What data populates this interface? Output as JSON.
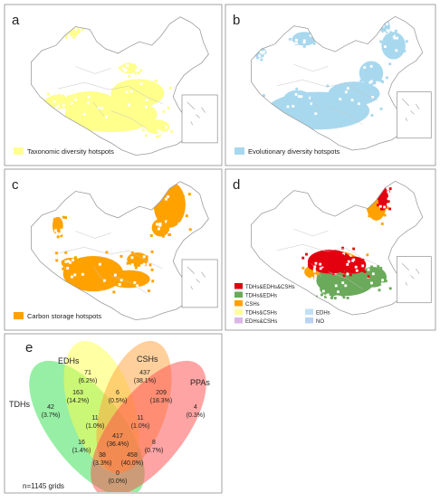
{
  "panels": [
    {
      "letter": "a",
      "legend": "Taxonomic diversity hotspots",
      "color": "#ffff8c"
    },
    {
      "letter": "b",
      "legend": "Evolutionary diversity hotspots",
      "color": "#a8d8ee"
    },
    {
      "letter": "c",
      "legend": "Carbon storage hotspots",
      "color": "#ffa200"
    },
    {
      "letter": "d",
      "legend": "",
      "color": "#e0120f"
    }
  ],
  "panel_d_legend": [
    {
      "label": "TDHs&EDHs&CSHs",
      "color": "#e3000f"
    },
    {
      "label": "TDHs&EDHs",
      "color": "#6aaa5a"
    },
    {
      "label": "CSHs",
      "color": "#ffa200"
    },
    {
      "label": "TDHs&CSHs",
      "color": "#ffff9a"
    },
    {
      "label": "EDHs",
      "color": "#bfe1f5"
    },
    {
      "label": "EDHs&CSHs",
      "color": "#dcb6e6"
    },
    {
      "label": "NO",
      "color": "#bcd3f3"
    }
  ],
  "venn": {
    "letter": "e",
    "set_labels": {
      "tdhs": "TDHs",
      "edhs": "EDHs",
      "cshs": "CSHs",
      "ppas": "PPAs"
    },
    "colors": {
      "tdhs": "#2ee04a",
      "edhs": "#ffff4a",
      "cshs": "#ffa23a",
      "ppas": "#ff4a4a"
    },
    "regions": [
      {
        "count": "42",
        "pct": "(3.7%)"
      },
      {
        "count": "71",
        "pct": "(6.2%)"
      },
      {
        "count": "437",
        "pct": "(38.1%)"
      },
      {
        "count": "4",
        "pct": "(0.3%)"
      },
      {
        "count": "163",
        "pct": "(14.2%)"
      },
      {
        "count": "6",
        "pct": "(0.5%)"
      },
      {
        "count": "209",
        "pct": "(18.3%)"
      },
      {
        "count": "11",
        "pct": "(1.0%)"
      },
      {
        "count": "11",
        "pct": "(1.0%)"
      },
      {
        "count": "417",
        "pct": "(36.4%)"
      },
      {
        "count": "16",
        "pct": "(1.4%)"
      },
      {
        "count": "8",
        "pct": "(0.7%)"
      },
      {
        "count": "458",
        "pct": "(40.0%)"
      },
      {
        "count": "38",
        "pct": "(3.3%)"
      },
      {
        "count": "0",
        "pct": "(0.0%)"
      }
    ],
    "total": "n=1145 grids"
  }
}
